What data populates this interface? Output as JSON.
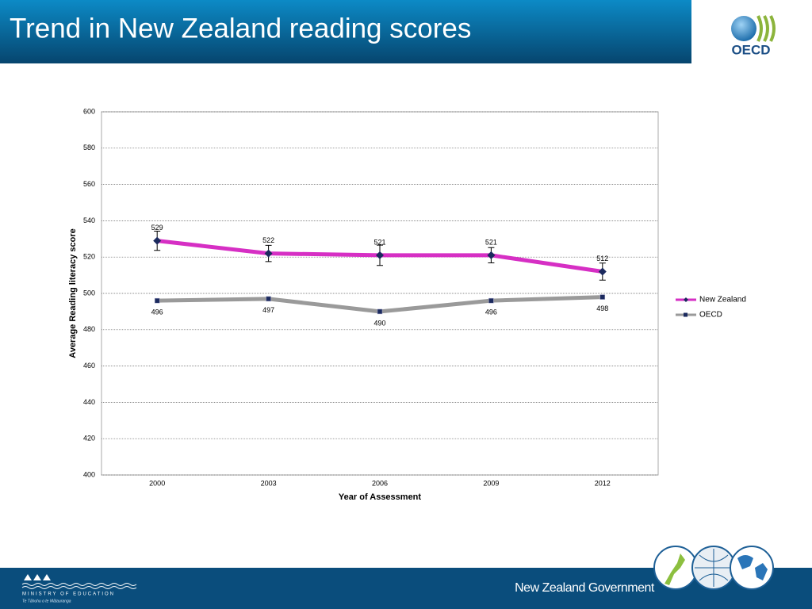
{
  "header": {
    "title": "Trend in New Zealand reading scores",
    "logo_text": "OECD"
  },
  "chart_data": {
    "type": "line",
    "categories": [
      "2000",
      "2003",
      "2006",
      "2009",
      "2012"
    ],
    "series": [
      {
        "name": "New Zealand",
        "color": "#d62fc4",
        "marker": "diamond",
        "marker_color": "#1b2a5e",
        "values": [
          529,
          522,
          521,
          521,
          512
        ],
        "errors": [
          5.3,
          4.5,
          5.6,
          4.2,
          4.7
        ]
      },
      {
        "name": "OECD",
        "color": "#9a9a9a",
        "marker": "square",
        "marker_color": "#1b2a5e",
        "values": [
          496,
          497,
          490,
          496,
          498
        ]
      }
    ],
    "ylim": [
      400,
      600
    ],
    "yticks": [
      400,
      420,
      440,
      460,
      480,
      500,
      520,
      540,
      560,
      580,
      600
    ],
    "y_label": "Average Reading literacy score",
    "x_label": "Year of Assessment",
    "grid": true,
    "legend": "right"
  },
  "footer": {
    "ministry": "MINISTRY OF EDUCATION",
    "ministry_maori": "Te Tāhuhu o te Mātauranga",
    "government": "New Zealand Government"
  }
}
